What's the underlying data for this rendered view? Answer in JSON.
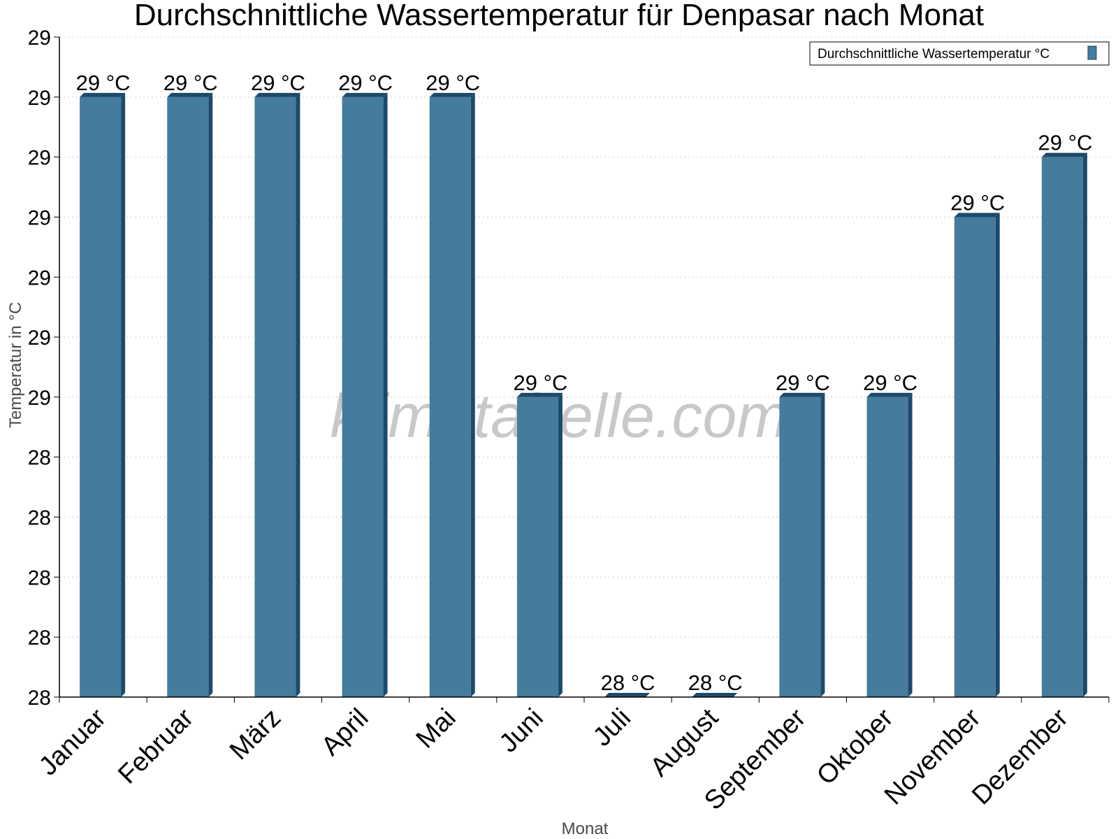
{
  "chart_data": {
    "type": "bar",
    "title": "Durchschnittliche Wassertemperatur für Denpasar nach Monat",
    "xlabel": "Monat",
    "ylabel": "Temperatur in °C",
    "categories": [
      "Januar",
      "Februar",
      "März",
      "April",
      "Mai",
      "Juni",
      "Juli",
      "August",
      "September",
      "Oktober",
      "November",
      "Dezember"
    ],
    "series": [
      {
        "name": "Durchschnittliche Wassertemperatur °C",
        "values": [
          29.0,
          29.0,
          29.0,
          29.0,
          29.0,
          28.5,
          28.0,
          28.0,
          28.5,
          28.5,
          28.8,
          28.9
        ],
        "labels": [
          "29 °C",
          "29 °C",
          "29 °C",
          "29 °C",
          "29 °C",
          "29 °C",
          "28 °C",
          "28 °C",
          "29 °C",
          "29 °C",
          "29 °C",
          "29 °C"
        ],
        "color": "#457b9d",
        "edge_color": "#1d4a6b"
      }
    ],
    "yticks": [
      28.0,
      28.1,
      28.2,
      28.3,
      28.4,
      28.5,
      28.6,
      28.7,
      28.8,
      28.9,
      29.0,
      29.1
    ],
    "ytick_labels": [
      "28",
      "28",
      "28",
      "28",
      "28",
      "29",
      "29",
      "29",
      "29",
      "29",
      "29",
      "29"
    ],
    "ylim": [
      28.0,
      29.1
    ],
    "grid": true,
    "legend_position": "top-right",
    "watermark": "klimatabelle.com"
  }
}
